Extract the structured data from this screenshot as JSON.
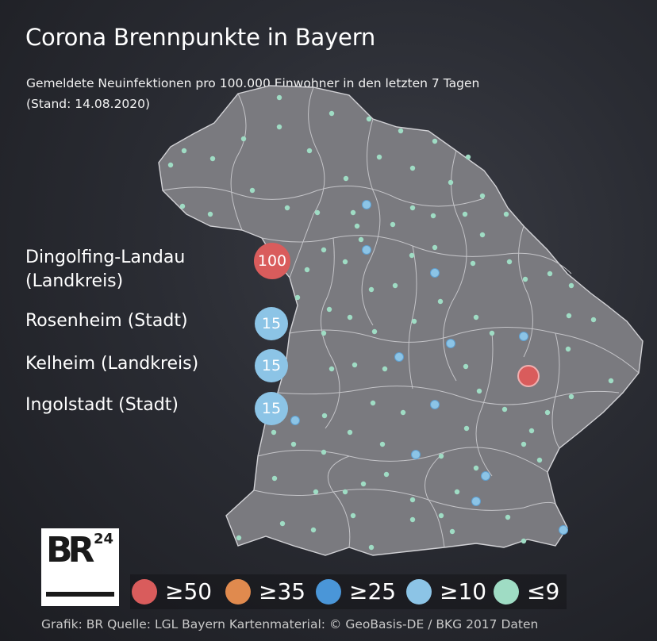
{
  "title": "Corona Brennpunkte in Bayern",
  "subtitle_line1": "Gemeldete Neuinfektionen pro 100.000 Einwohner in den letzten 7 Tagen",
  "subtitle_line2": "(Stand: 14.08.2020)",
  "colors": {
    "ge50": "#d95c5c",
    "ge35": "#e08a4e",
    "ge25": "#4a96d8",
    "ge10": "#8cc4e6",
    "le9": "#9fdcc4",
    "land": "#7a7a7f",
    "border": "#c8c8cc"
  },
  "hotspots": [
    {
      "name": "Dingolfing-Landau",
      "type": "(Landkreis)",
      "value": "100",
      "category": "ge50"
    },
    {
      "name": "Rosenheim (Stadt)",
      "type": "",
      "value": "15",
      "category": "ge10"
    },
    {
      "name": "Kelheim (Landkreis)",
      "type": "",
      "value": "15",
      "category": "ge10"
    },
    {
      "name": "Ingolstadt (Stadt)",
      "type": "",
      "value": "15",
      "category": "ge10"
    }
  ],
  "legend": [
    {
      "label": "≥50",
      "category": "ge50"
    },
    {
      "label": "≥35",
      "category": "ge35"
    },
    {
      "label": "≥25",
      "category": "ge25"
    },
    {
      "label": "≥10",
      "category": "ge10"
    },
    {
      "label": "≤9",
      "category": "le9"
    }
  ],
  "logo": {
    "letters": "BR",
    "number": "24"
  },
  "source": "Grafik: BR Quelle: LGL Bayern Kartenmaterial: © GeoBasis-DE / BKG 2017 Daten"
}
